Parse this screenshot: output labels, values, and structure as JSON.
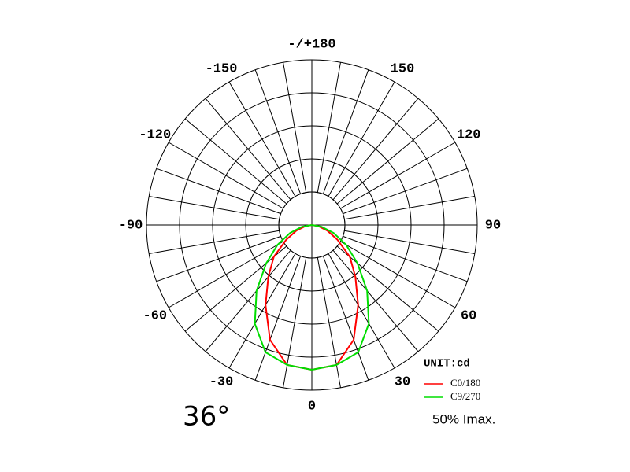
{
  "chart_data": {
    "type": "polar",
    "theta": [
      -90,
      -80,
      -70,
      -60,
      -50,
      -40,
      -30,
      -20,
      -10,
      0,
      10,
      20,
      30,
      40,
      50,
      60,
      70,
      80,
      90
    ],
    "series": [
      {
        "name": "C0/180",
        "color": "#ff0000",
        "values": [
          0,
          0.2,
          0.5,
          0.9,
          1.5,
          2.05,
          2.8,
          3.7,
          4.3,
          4.38,
          4.3,
          3.7,
          2.8,
          2.05,
          1.5,
          0.9,
          0.5,
          0.2,
          0
        ]
      },
      {
        "name": "C9/270",
        "color": "#00dd00",
        "values": [
          0,
          0.3,
          0.7,
          1.2,
          1.8,
          2.6,
          3.45,
          4.1,
          4.3,
          4.38,
          4.3,
          4.1,
          3.45,
          2.6,
          1.8,
          1.2,
          0.7,
          0.3,
          0
        ]
      }
    ],
    "rlim": [
      0,
      5
    ],
    "rticks": [
      1,
      2,
      3,
      4,
      5
    ],
    "thetaticks": [
      0,
      30,
      60,
      90,
      120,
      150,
      {
        "value": 180,
        "label": "-/+180"
      },
      -150,
      -120,
      -90,
      -60,
      -30
    ],
    "thetagrid": [
      0,
      10,
      20,
      30,
      40,
      50,
      60,
      70,
      80,
      90,
      100,
      110,
      120,
      130,
      140,
      150,
      160,
      170,
      180,
      -170,
      -160,
      -150,
      -140,
      -130,
      -120,
      -110,
      -100,
      -90,
      -80,
      -70,
      -60,
      -50,
      -40,
      -30,
      -20,
      -10
    ],
    "unit_label": "UNIT:cd",
    "beam_angle_label": "36°",
    "scale_note": "50% Imax."
  }
}
